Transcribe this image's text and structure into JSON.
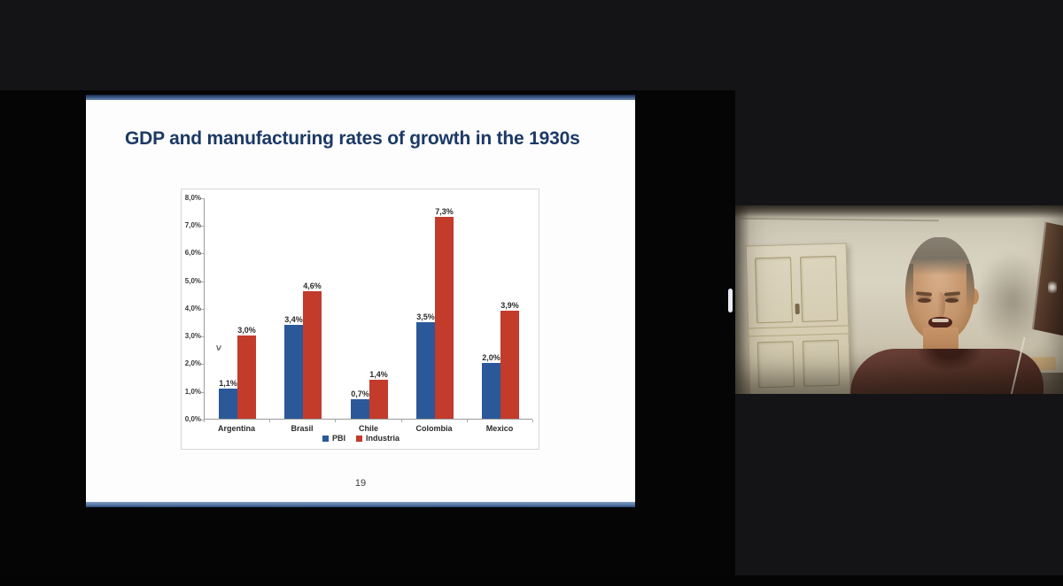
{
  "slide": {
    "title": "GDP and manufacturing rates of growth in the 1930s",
    "page_number": "19",
    "cursor_glyph": ">",
    "accent_color": "#5f7ea8",
    "background_color": "#fdfdfd"
  },
  "chart_data": {
    "type": "bar",
    "title": "",
    "categories": [
      "Argentina",
      "Brasil",
      "Chile",
      "Colombia",
      "Mexico"
    ],
    "series": [
      {
        "name": "PBI",
        "color": "#2b5899",
        "values": [
          1.1,
          3.4,
          0.7,
          3.5,
          2.0
        ],
        "labels": [
          "1,1%",
          "3,4%",
          "0,7%",
          "3,5%",
          "2,0%"
        ]
      },
      {
        "name": "Industria",
        "color": "#c23b2b",
        "values": [
          3.0,
          4.6,
          1.4,
          7.3,
          3.9
        ],
        "labels": [
          "3,0%",
          "4,6%",
          "1,4%",
          "7,3%",
          "3,9%"
        ]
      }
    ],
    "y_axis": {
      "min": 0,
      "max": 8,
      "step": 1,
      "tick_labels": [
        "0,0%",
        "1,0%",
        "2,0%",
        "3,0%",
        "4,0%",
        "5,0%",
        "6,0%",
        "7,0%",
        "8,0%"
      ]
    },
    "grid": false,
    "legend_position": "bottom"
  },
  "video_panel": {
    "participant_description": "man in dark maroon polo shirt in front of beige wall with white cabinet"
  }
}
